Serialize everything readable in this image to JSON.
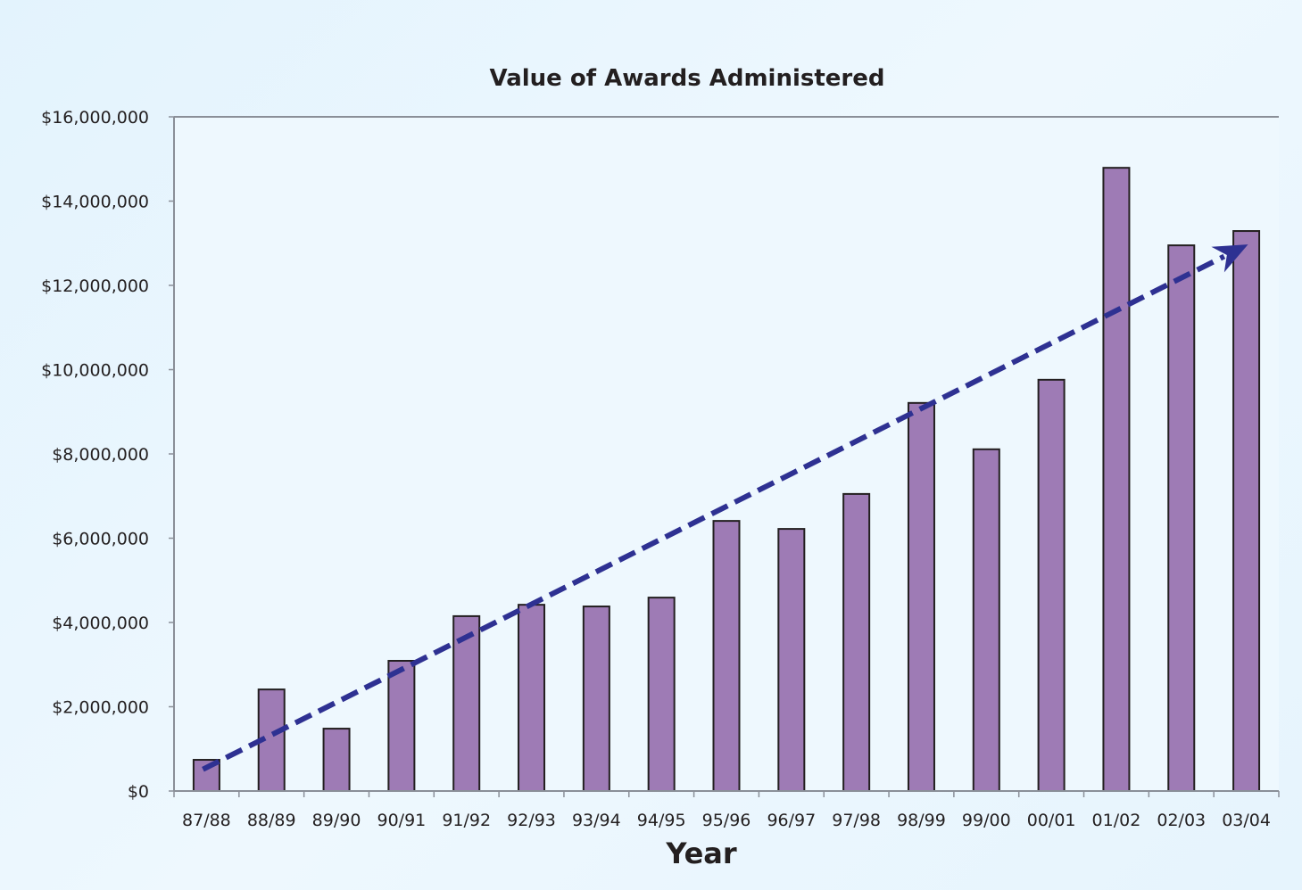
{
  "chart_data": {
    "type": "bar",
    "title": "Value of Awards Administered",
    "xlabel": "Year",
    "ylabel": "",
    "ylim": [
      0,
      16000000
    ],
    "yticks": [
      0,
      2000000,
      4000000,
      6000000,
      8000000,
      10000000,
      12000000,
      14000000,
      16000000
    ],
    "ytick_labels": [
      "$0",
      "$2,000,000",
      "$4,000,000",
      "$6,000,000",
      "$8,000,000",
      "$10,000,000",
      "$12,000,000",
      "$14,000,000",
      "$16,000,000"
    ],
    "categories": [
      "87/88",
      "88/89",
      "89/90",
      "90/91",
      "91/92",
      "92/93",
      "93/94",
      "94/95",
      "95/96",
      "96/97",
      "97/98",
      "98/99",
      "99/00",
      "00/01",
      "01/02",
      "02/03",
      "03/04"
    ],
    "values": [
      740000,
      2410000,
      1480000,
      3090000,
      4150000,
      4420000,
      4380000,
      4590000,
      6410000,
      6220000,
      7050000,
      9210000,
      8110000,
      9760000,
      14790000,
      12950000,
      13290000
    ],
    "trend_arrow": {
      "from": {
        "category": "87/88",
        "value": 600000
      },
      "to": {
        "category": "03/04",
        "value": 13100000
      },
      "style": "dashed"
    },
    "grid": false,
    "legend": "none",
    "colors": {
      "bar": "#9e7bb5",
      "bar_edge": "#231f20",
      "trend": "#2e3192",
      "axis": "#8a8f98"
    }
  }
}
